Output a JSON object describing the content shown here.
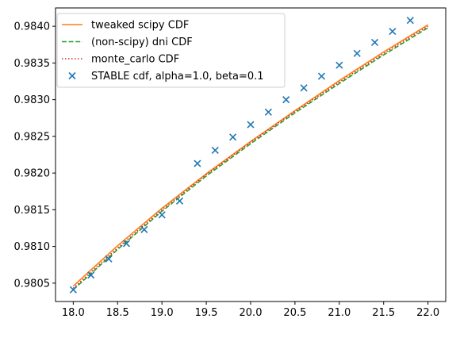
{
  "chart_data": {
    "type": "line",
    "title": "",
    "xlabel": "",
    "ylabel": "",
    "xlim": [
      17.8,
      22.2
    ],
    "ylim": [
      0.98025,
      0.98425
    ],
    "xticks": [
      18.0,
      18.5,
      19.0,
      19.5,
      20.0,
      20.5,
      21.0,
      21.5,
      22.0
    ],
    "xtick_labels": [
      "18.0",
      "18.5",
      "19.0",
      "19.5",
      "20.0",
      "20.5",
      "21.0",
      "21.5",
      "22.0"
    ],
    "yticks": [
      0.9805,
      0.981,
      0.9815,
      0.982,
      0.9825,
      0.983,
      0.9835,
      0.984
    ],
    "ytick_labels": [
      "0.9805",
      "0.9810",
      "0.9815",
      "0.9820",
      "0.9825",
      "0.9830",
      "0.9835",
      "0.9840"
    ],
    "grid": false,
    "legend_position": "upper-left",
    "series": [
      {
        "name": "tweaked scipy CDF",
        "style": "solid",
        "color": "#ff7f0e",
        "x": [
          18.0,
          18.5,
          19.0,
          19.5,
          20.0,
          20.5,
          21.0,
          21.5,
          22.0
        ],
        "y": [
          0.98046,
          0.98101,
          0.98152,
          0.98199,
          0.98243,
          0.98285,
          0.98326,
          0.98365,
          0.98402
        ]
      },
      {
        "name": "(non-scipy) dni CDF",
        "style": "dashed",
        "color": "#2ca02c",
        "x": [
          18.0,
          18.5,
          19.0,
          19.5,
          20.0,
          20.5,
          21.0,
          21.5,
          22.0
        ],
        "y": [
          0.98041,
          0.98096,
          0.98148,
          0.98196,
          0.9824,
          0.98282,
          0.98322,
          0.98361,
          0.98398
        ]
      },
      {
        "name": "monte_carlo CDF",
        "style": "dotted",
        "color": "#d62728",
        "x": [
          18.0,
          18.5,
          19.0,
          19.5,
          20.0,
          20.5,
          21.0,
          21.5,
          22.0
        ],
        "y": [
          0.98043,
          0.98098,
          0.9815,
          0.98198,
          0.98242,
          0.98284,
          0.98324,
          0.98363,
          0.984
        ]
      },
      {
        "name": "STABLE cdf, alpha=1.0, beta=0.1",
        "style": "marker-x",
        "color": "#1f77b4",
        "x": [
          18.0,
          18.2,
          18.4,
          18.6,
          18.8,
          19.0,
          19.2,
          19.4,
          19.6,
          19.8,
          20.0,
          20.2,
          20.4,
          20.6,
          20.8,
          21.0,
          21.2,
          21.4,
          21.6,
          21.8
        ],
        "y": [
          0.98041,
          0.98061,
          0.98083,
          0.98104,
          0.98123,
          0.98143,
          0.98162,
          0.98213,
          0.98231,
          0.98249,
          0.98266,
          0.98283,
          0.983,
          0.98316,
          0.98332,
          0.98347,
          0.98363,
          0.98378,
          0.98393,
          0.98408
        ]
      }
    ]
  }
}
